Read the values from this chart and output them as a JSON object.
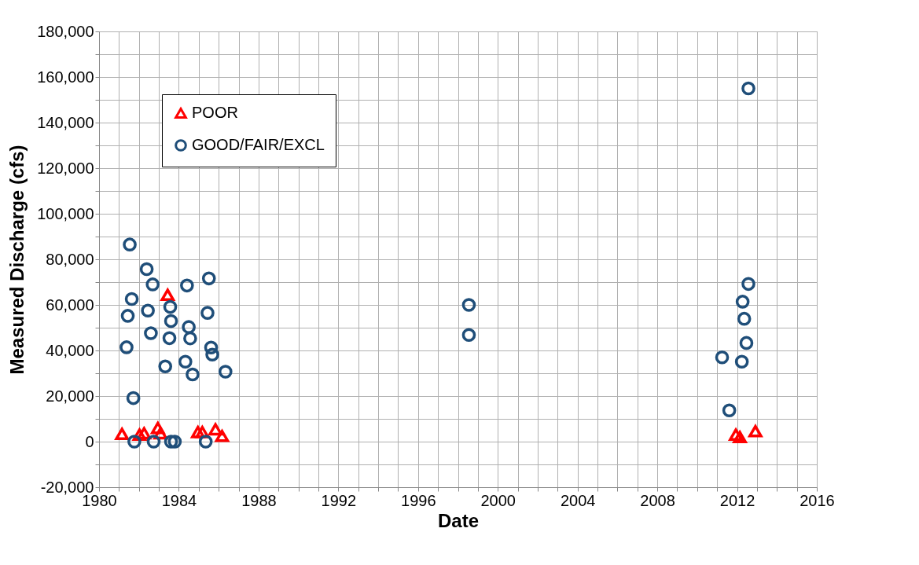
{
  "chart_data": {
    "type": "scatter",
    "xlabel": "Date",
    "ylabel": "Measured Discharge (cfs)",
    "xlim": [
      1980,
      2016
    ],
    "xticks": [
      1980,
      {
        "value": 1981,
        "label": null
      },
      {
        "value": 1982,
        "label": null
      },
      {
        "value": 1983,
        "label": null
      },
      1984,
      {
        "value": 1985,
        "label": null
      },
      {
        "value": 1986,
        "label": null
      },
      {
        "value": 1987,
        "label": null
      },
      1988,
      {
        "value": 1989,
        "label": null
      },
      {
        "value": 1990,
        "label": null
      },
      {
        "value": 1991,
        "label": null
      },
      1992,
      {
        "value": 1993,
        "label": null
      },
      {
        "value": 1994,
        "label": null
      },
      {
        "value": 1995,
        "label": null
      },
      1996,
      {
        "value": 1997,
        "label": null
      },
      {
        "value": 1998,
        "label": null
      },
      {
        "value": 1999,
        "label": null
      },
      2000,
      {
        "value": 2001,
        "label": null
      },
      {
        "value": 2002,
        "label": null
      },
      {
        "value": 2003,
        "label": null
      },
      2004,
      {
        "value": 2005,
        "label": null
      },
      {
        "value": 2006,
        "label": null
      },
      {
        "value": 2007,
        "label": null
      },
      2008,
      {
        "value": 2009,
        "label": null
      },
      {
        "value": 2010,
        "label": null
      },
      {
        "value": 2011,
        "label": null
      },
      2012,
      {
        "value": 2013,
        "label": null
      },
      {
        "value": 2014,
        "label": null
      },
      {
        "value": 2015,
        "label": null
      },
      2016
    ],
    "ylim": [
      -20000,
      180000
    ],
    "yticks": [
      {
        "value": -20000,
        "label": "-20,000"
      },
      {
        "value": -10000,
        "label": null
      },
      0,
      {
        "value": 10000,
        "label": null
      },
      {
        "value": 20000,
        "label": "20,000"
      },
      {
        "value": 30000,
        "label": null
      },
      {
        "value": 40000,
        "label": "40,000"
      },
      {
        "value": 50000,
        "label": null
      },
      {
        "value": 60000,
        "label": "60,000"
      },
      {
        "value": 70000,
        "label": null
      },
      {
        "value": 80000,
        "label": "80,000"
      },
      {
        "value": 90000,
        "label": null
      },
      {
        "value": 100000,
        "label": "100,000"
      },
      {
        "value": 110000,
        "label": null
      },
      {
        "value": 120000,
        "label": "120,000"
      },
      {
        "value": 130000,
        "label": null
      },
      {
        "value": 140000,
        "label": "140,000"
      },
      {
        "value": 150000,
        "label": null
      },
      {
        "value": 160000,
        "label": "160,000"
      },
      {
        "value": 170000,
        "label": null
      },
      {
        "value": 180000,
        "label": "180,000"
      }
    ],
    "grid": true,
    "legend": "top left",
    "series": [
      {
        "name": "POOR",
        "color": "#ff0000",
        "marker": "triangle",
        "x": [
          1983.44,
          1981.15,
          1982.03,
          1982.26,
          1982.95,
          1983.08,
          1984.96,
          1985.18,
          1985.84,
          1986.17,
          2011.94,
          2012.14,
          2012.92
        ],
        "values": [
          64400,
          3400,
          3100,
          3700,
          6000,
          3700,
          4200,
          4200,
          5400,
          2500,
          3100,
          2000,
          4600
        ]
      },
      {
        "name": "GOOD/FAIR/EXCL",
        "color": "#1f4e79",
        "marker": "circle",
        "x": [
          1981.54,
          1982.39,
          1982.69,
          1981.64,
          1982.45,
          1981.44,
          1983.57,
          1983.61,
          1982.6,
          1983.53,
          1981.38,
          1981.72,
          1984.41,
          1985.51,
          1985.44,
          1984.5,
          1984.57,
          1985.62,
          1985.68,
          1984.33,
          1983.32,
          1984.69,
          1986.34,
          1981.77,
          1982.74,
          1983.61,
          1983.8,
          1985.35,
          1998.55,
          1998.55,
          2012.57,
          2012.57,
          2012.28,
          2012.36,
          2012.47,
          2011.25,
          2012.24,
          2011.61
        ],
        "values": [
          86500,
          75700,
          69000,
          62600,
          57500,
          55200,
          59100,
          52900,
          47600,
          45400,
          41400,
          19100,
          68500,
          71600,
          56500,
          50300,
          45300,
          41300,
          38200,
          35100,
          33000,
          29500,
          30700,
          0,
          0,
          0,
          0,
          0,
          60000,
          46800,
          155000,
          69200,
          61400,
          53900,
          43300,
          37000,
          35100,
          13700
        ]
      }
    ]
  }
}
